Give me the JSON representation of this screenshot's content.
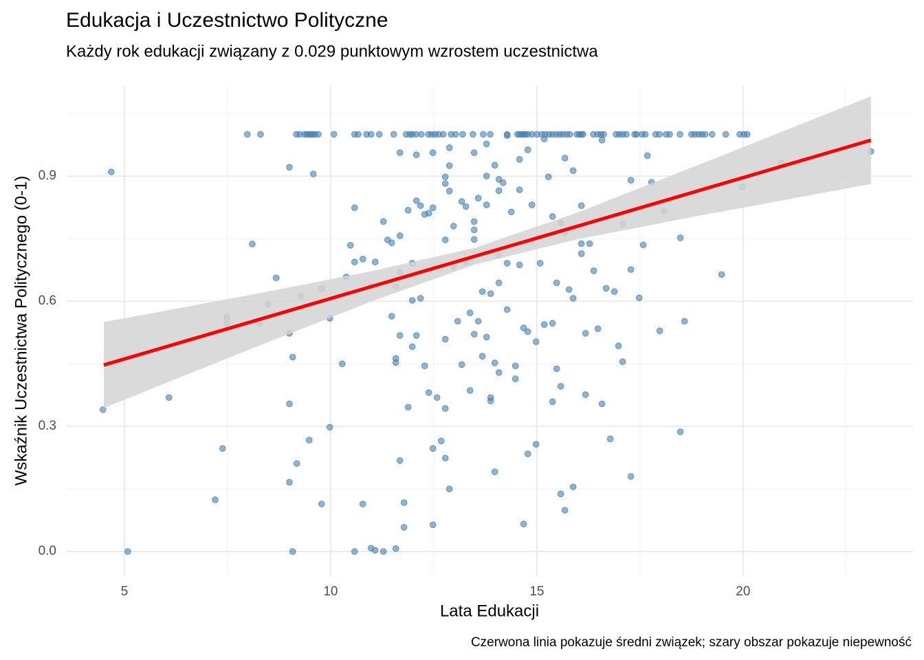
{
  "chart_data": {
    "type": "scatter",
    "title": "Edukacja i Uczestnictwo Polityczne",
    "subtitle": "Każdy rok edukacji związany z 0.029 punktowym wzrostem uczestnictwa",
    "x_label": "Lata Edukacji",
    "y_label": "Wskaźnik Uczestnictwa Politycznego (0-1)",
    "caption": "Czerwona linia pokazuje średni związek; szary obszar pokazuje niepewność",
    "xlim": [
      3.6,
      24.12
    ],
    "ylim": [
      -0.059,
      1.116
    ],
    "xticks": [
      5,
      10,
      15,
      20
    ],
    "yticks": [
      {
        "value": 0,
        "label": "0.0"
      },
      0.3,
      0.6,
      0.9
    ],
    "minor_xticks": [
      7.5,
      12.5,
      17.5,
      22.5
    ],
    "minor_yticks": [
      0.15,
      0.45,
      0.75,
      1.05
    ],
    "grid": true,
    "points": {
      "color": "#4682b4",
      "x": [
        4.48,
        4.68,
        5.08,
        6.08,
        7.2,
        7.38,
        7.48,
        7.48,
        8.1,
        8.28,
        8.48,
        8.68,
        9,
        9,
        9,
        9,
        9.08,
        9.08,
        9.18,
        9.28,
        9.48,
        9.58,
        9.78,
        9.78,
        9.98,
        9.98,
        10.28,
        10.38,
        10.48,
        10.58,
        10.58,
        10.58,
        10.78,
        10.78,
        10.98,
        10.98,
        11.08,
        11.08,
        11.28,
        11.28,
        11.38,
        11.48,
        11.48,
        11.58,
        11.58,
        11.58,
        11.58,
        11.68,
        11.68,
        11.68,
        11.68,
        11.68,
        11.78,
        11.78,
        11.88,
        11.88,
        11.98,
        11.98,
        11.98,
        12.08,
        12.08,
        12.08,
        12.18,
        12.18,
        12.28,
        12.28,
        12.38,
        12.38,
        12.48,
        12.48,
        12.48,
        12.48,
        12.58,
        12.68,
        12.78,
        12.78,
        12.78,
        12.78,
        12.78,
        12.78,
        12.88,
        12.88,
        12.88,
        12.88,
        12.98,
        12.98,
        13.08,
        13.18,
        13.18,
        13.28,
        13.28,
        13.38,
        13.38,
        13.48,
        13.48,
        13.48,
        13.48,
        13.48,
        13.58,
        13.58,
        13.68,
        13.68,
        13.78,
        13.78,
        13.78,
        13.78,
        13.88,
        13.88,
        13.88,
        13.98,
        13.98,
        13.98,
        14.08,
        14.08,
        14.08,
        14.08,
        14.08,
        14.18,
        14.28,
        14.28,
        14.38,
        14.48,
        14.48,
        14.58,
        14.58,
        14.58,
        14.68,
        14.68,
        14.78,
        14.78,
        14.78,
        14.88,
        14.98,
        14.98,
        15.08,
        15.18,
        15.28,
        15.38,
        15.38,
        15.38,
        15.48,
        15.48,
        15.58,
        15.58,
        15.58,
        15.68,
        15.68,
        15.68,
        15.78,
        15.88,
        15.88,
        15.88,
        16.08,
        16.08,
        16.08,
        16.18,
        16.18,
        16.28,
        16.38,
        16.48,
        16.58,
        16.68,
        16.78,
        16.88,
        16.98,
        17.08,
        17.08,
        17.28,
        17.28,
        17.28,
        17.48,
        17.58,
        17.68,
        17.78,
        17.98,
        18.08,
        18.48,
        18.48,
        18.58,
        19.48,
        19.98,
        20.93,
        23.1,
        14.28,
        15.18,
        16.58,
        7.98,
        8.3,
        9.17,
        9.25,
        9.37,
        9.42,
        9.47,
        9.52,
        9.57,
        9.62,
        9.7,
        10.08,
        10.58,
        10.67,
        10.87,
        10.98,
        11.18,
        11.53,
        11.83,
        11.92,
        11.98,
        12.07,
        12.2,
        12.37,
        12.45,
        12.53,
        12.62,
        12.73,
        12.92,
        13.03,
        13.2,
        13.45,
        13.7,
        13.87,
        14.28,
        14.53,
        14.58,
        14.63,
        14.68,
        14.72,
        14.78,
        14.88,
        15,
        15.12,
        15.2,
        15.3,
        15.38,
        15.47,
        15.55,
        15.63,
        15.72,
        15.8,
        15.97,
        16.03,
        16.08,
        16.12,
        16.37,
        16.47,
        16.55,
        16.62,
        16.92,
        17,
        17.08,
        17.17,
        17.37,
        17.42,
        17.55,
        17.63,
        17.88,
        17.97,
        18.13,
        18.22,
        18.47,
        18.75,
        18.83,
        18.92,
        19,
        19.08,
        19.25,
        19.58,
        19.92,
        20.02,
        20.1
      ],
      "y": [
        0.34,
        0.91,
        0,
        0.369,
        0.124,
        0.247,
        0.562,
        0.547,
        0.737,
        0.547,
        0.592,
        0.656,
        0.921,
        0.523,
        0.354,
        0.166,
        0.466,
        0,
        0.211,
        0.612,
        0.267,
        0.905,
        0.63,
        0.114,
        0.559,
        0.298,
        0.45,
        0.658,
        0.734,
        0.824,
        0.694,
        0,
        0.701,
        0.114,
        0.635,
        0.008,
        0.694,
        0.003,
        0.791,
        0,
        0.747,
        0.74,
        0.564,
        0.635,
        0.463,
        0.453,
        0.007,
        0.956,
        0.757,
        0.669,
        0.518,
        0.218,
        0.117,
        0.058,
        0.818,
        0.346,
        0.691,
        0.602,
        0.491,
        0.951,
        0.841,
        0.518,
        0.829,
        0.607,
        0.808,
        0.445,
        0.811,
        0.381,
        0.824,
        0.247,
        0.064,
        0.956,
        0.369,
        0.265,
        0.898,
        0.882,
        0.747,
        0.509,
        0.343,
        0.224,
        0.968,
        0.925,
        0.864,
        0.15,
        0.78,
        0.684,
        0.552,
        0.839,
        0.448,
        0.827,
        0.694,
        0.572,
        0.386,
        0.956,
        0.791,
        0.771,
        0.748,
        0.521,
        0.847,
        0.552,
        0.468,
        0.623,
        0.977,
        0.831,
        0.514,
        0.9,
        0.369,
        0.361,
        0.618,
        0.926,
        0.452,
        0.191,
        0.892,
        0.865,
        0.71,
        0.644,
        0.429,
        0.884,
        0.691,
        0.58,
        0.814,
        0.445,
        0.414,
        0.94,
        0.867,
        0.687,
        0.536,
        0.066,
        0.963,
        0.527,
        0.234,
        0.831,
        0.503,
        0.257,
        0.691,
        0.544,
        0.898,
        0.803,
        0.547,
        0.359,
        0.644,
        0.438,
        0.788,
        0.396,
        0.138,
        0.943,
        0.765,
        0.099,
        0.628,
        0.913,
        0.607,
        0.155,
        0.829,
        0.738,
        0.714,
        0.523,
        0.376,
        0.738,
        0.673,
        0.534,
        0.354,
        0.631,
        0.27,
        0.623,
        0.493,
        0.785,
        0.455,
        0.89,
        0.676,
        0.18,
        0.608,
        0.735,
        0.949,
        0.885,
        0.529,
        0.816,
        0.752,
        0.287,
        0.552,
        0.664,
        0.874,
        0.931,
        0.959,
        0.997,
        0.989,
        0.986,
        1,
        1,
        1,
        1,
        1,
        1,
        1,
        1,
        1,
        1,
        1,
        1,
        1,
        1,
        1,
        1,
        1,
        1,
        1,
        1,
        1,
        1,
        1,
        1,
        1,
        1,
        1,
        1,
        1,
        1,
        1,
        1,
        1,
        1,
        1,
        1,
        1,
        1,
        1,
        1,
        1,
        1,
        1,
        1,
        1,
        1,
        1,
        1,
        1,
        1,
        1,
        1,
        1,
        1,
        1,
        1,
        1,
        1,
        1,
        1,
        1,
        1,
        1,
        1,
        1,
        1,
        1,
        1,
        1,
        1,
        1,
        1,
        1,
        1,
        1,
        1,
        1,
        1,
        1,
        1,
        1,
        1,
        1
      ]
    },
    "fit": {
      "color": "#ff0000",
      "x": [
        4.5,
        23.1
      ],
      "y": [
        0.447,
        0.986
      ]
    },
    "ci": {
      "color": "#d3d3d3",
      "x": [
        4.5,
        8,
        11,
        13.5,
        16,
        19,
        23.1
      ],
      "lower": [
        0.344,
        0.483,
        0.6,
        0.688,
        0.749,
        0.806,
        0.881
      ],
      "upper": [
        0.55,
        0.614,
        0.672,
        0.728,
        0.813,
        0.93,
        1.091
      ]
    }
  }
}
